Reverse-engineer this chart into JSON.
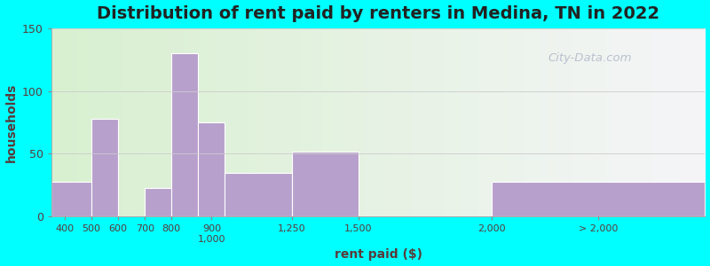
{
  "title": "Distribution of rent paid by renters in Medina, TN in 2022",
  "xlabel": "rent paid ($)",
  "ylabel": "households",
  "bar_color": "#b8a0cc",
  "bar_edgecolor": "#ffffff",
  "ylim": [
    0,
    150
  ],
  "yticks": [
    0,
    50,
    100,
    150
  ],
  "outer_bg": "#00ffff",
  "title_color": "#222222",
  "axis_label_color": "#5a3a3a",
  "tick_color": "#5a3a3a",
  "watermark": "City-Data.com",
  "title_fontsize": 14,
  "label_fontsize": 10,
  "grid_color": "#cccccc",
  "bar_heights": [
    28,
    78,
    0,
    23,
    130,
    75,
    35,
    52,
    0,
    28
  ],
  "bar_edges": [
    350,
    500,
    600,
    700,
    800,
    900,
    1000,
    1250,
    1500,
    2000,
    2800
  ],
  "tick_positions": [
    400,
    500,
    600,
    700,
    800,
    950,
    1250,
    1500,
    2000,
    2400
  ],
  "tick_labels": [
    "400",
    "500",
    "600",
    "700",
    "800",
    "900\n1,000",
    "1,250",
    "1,500",
    "2,000",
    "> 2,000"
  ]
}
